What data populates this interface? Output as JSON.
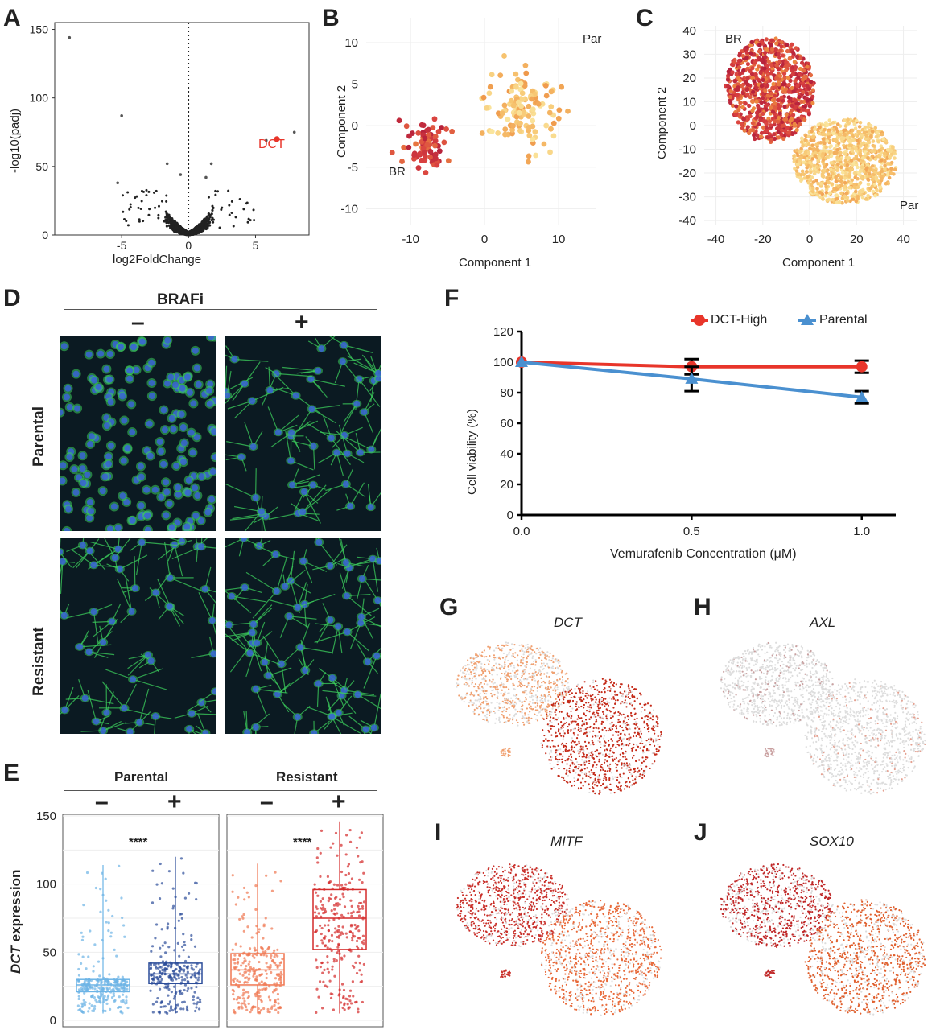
{
  "panels": {
    "a": "A",
    "b": "B",
    "c": "C",
    "d": "D",
    "e": "E",
    "f": "F",
    "g": "G",
    "h": "H",
    "i": "I",
    "j": "J"
  },
  "colors": {
    "dct_high": "#e8352a",
    "parental_line": "#4a90d0",
    "br": "#b4203a",
    "par": "#f7e39a",
    "volcano": "#222222",
    "highlight": "#e8352a",
    "box_par_minus": "#6cb4e6",
    "box_par_plus": "#2c4d9a",
    "box_res_minus": "#f07650",
    "box_res_plus": "#d42a2a",
    "micro_nuclei": "#3a62d6",
    "micro_cyto": "#3ccf5c"
  },
  "chart_data": [
    {
      "id": "A",
      "type": "scatter",
      "title": "",
      "xlabel": "log2FoldChange",
      "ylabel": "-log10(padj)",
      "xlim": [
        -10,
        9
      ],
      "ylim": [
        0,
        155
      ],
      "xticks": [
        "-5",
        "0",
        "5"
      ],
      "yticks": [
        "0",
        "50",
        "100",
        "150"
      ],
      "highlight": {
        "label": "DCT",
        "x": 6.6,
        "y": 70
      },
      "outliers": [
        [
          -8.9,
          144
        ],
        [
          -5,
          87
        ],
        [
          7.9,
          75
        ],
        [
          5.8,
          69
        ],
        [
          -1.6,
          52
        ],
        [
          1.7,
          52
        ],
        [
          -0.6,
          44
        ],
        [
          1.3,
          42
        ],
        [
          -5.3,
          38
        ]
      ],
      "vline": 0
    },
    {
      "id": "B",
      "type": "scatter",
      "xlabel": "Component 1",
      "ylabel": "Component 2",
      "xlim": [
        -16,
        15
      ],
      "ylim": [
        -12,
        13
      ],
      "xticks": [
        "-10",
        "0",
        "10"
      ],
      "yticks": [
        "-10",
        "-5",
        "0",
        "5",
        "10"
      ],
      "annotations": [
        "BR",
        "Par"
      ],
      "groups": [
        {
          "name": "BR",
          "center": [
            -8,
            -2
          ],
          "spread": [
            3.4,
            3.8
          ]
        },
        {
          "name": "Par",
          "center": [
            5,
            2
          ],
          "spread": [
            5,
            5
          ]
        }
      ]
    },
    {
      "id": "C",
      "type": "scatter",
      "xlabel": "Component 1",
      "ylabel": "Component 2",
      "xlim": [
        -45,
        46
      ],
      "ylim": [
        -42,
        42
      ],
      "xticks": [
        "-40",
        "-20",
        "0",
        "20",
        "40"
      ],
      "yticks": [
        "-40",
        "-30",
        "-20",
        "-10",
        "0",
        "10",
        "20",
        "30",
        "40"
      ],
      "annotations": [
        "BR",
        "Par"
      ],
      "groups": [
        {
          "name": "BR",
          "center": [
            -16,
            15
          ],
          "spread": [
            17,
            20
          ]
        },
        {
          "name": "Par",
          "center": [
            17,
            -15
          ],
          "spread": [
            22,
            19
          ]
        }
      ]
    },
    {
      "id": "E",
      "type": "box",
      "ylabel_gene": "DCT",
      "ylabel_rest": " expression",
      "ylim": [
        0,
        150
      ],
      "yticks": [
        "0",
        "50",
        "100",
        "150"
      ],
      "groups": [
        {
          "name": "Parental",
          "significance": "****",
          "treatments": [
            {
              "label": "–",
              "median": 26,
              "q1": 21,
              "q3": 30,
              "min": 5,
              "max": 114
            },
            {
              "label": "+",
              "median": 34,
              "q1": 27,
              "q3": 42,
              "min": 5,
              "max": 120
            }
          ]
        },
        {
          "name": "Resistant",
          "significance": "****",
          "treatments": [
            {
              "label": "–",
              "median": 37,
              "q1": 26,
              "q3": 49,
              "min": 5,
              "max": 115
            },
            {
              "label": "+",
              "median": 75,
              "q1": 52,
              "q3": 96,
              "min": 5,
              "max": 146
            }
          ]
        }
      ]
    },
    {
      "id": "F",
      "type": "line",
      "xlabel": "Vemurafenib Concentration (μM)",
      "ylabel": "Cell viability (%)",
      "xlim": [
        0,
        1.1
      ],
      "ylim": [
        0,
        120
      ],
      "x": [
        0.0,
        0.5,
        1.0
      ],
      "xticks": [
        "0.0",
        "0.5",
        "1.0"
      ],
      "yticks": [
        "0",
        "20",
        "40",
        "60",
        "80",
        "100",
        "120"
      ],
      "series": [
        {
          "name": "DCT-High",
          "marker": "circle",
          "values": [
            100,
            97,
            97
          ],
          "errors": [
            0,
            5,
            4
          ]
        },
        {
          "name": "Parental",
          "marker": "triangle",
          "values": [
            100,
            89,
            77
          ],
          "errors": [
            0,
            8,
            4
          ]
        }
      ]
    }
  ],
  "panel_d": {
    "header": "BRAFi",
    "minus": "–",
    "plus": "+",
    "rows": [
      "Parental",
      "Resistant"
    ]
  },
  "panel_e": {
    "groups": [
      "Parental",
      "Resistant"
    ],
    "minus": "–",
    "plus": "+"
  },
  "genes": {
    "g": "DCT",
    "h": "AXL",
    "i": "MITF",
    "j": "SOX10"
  }
}
